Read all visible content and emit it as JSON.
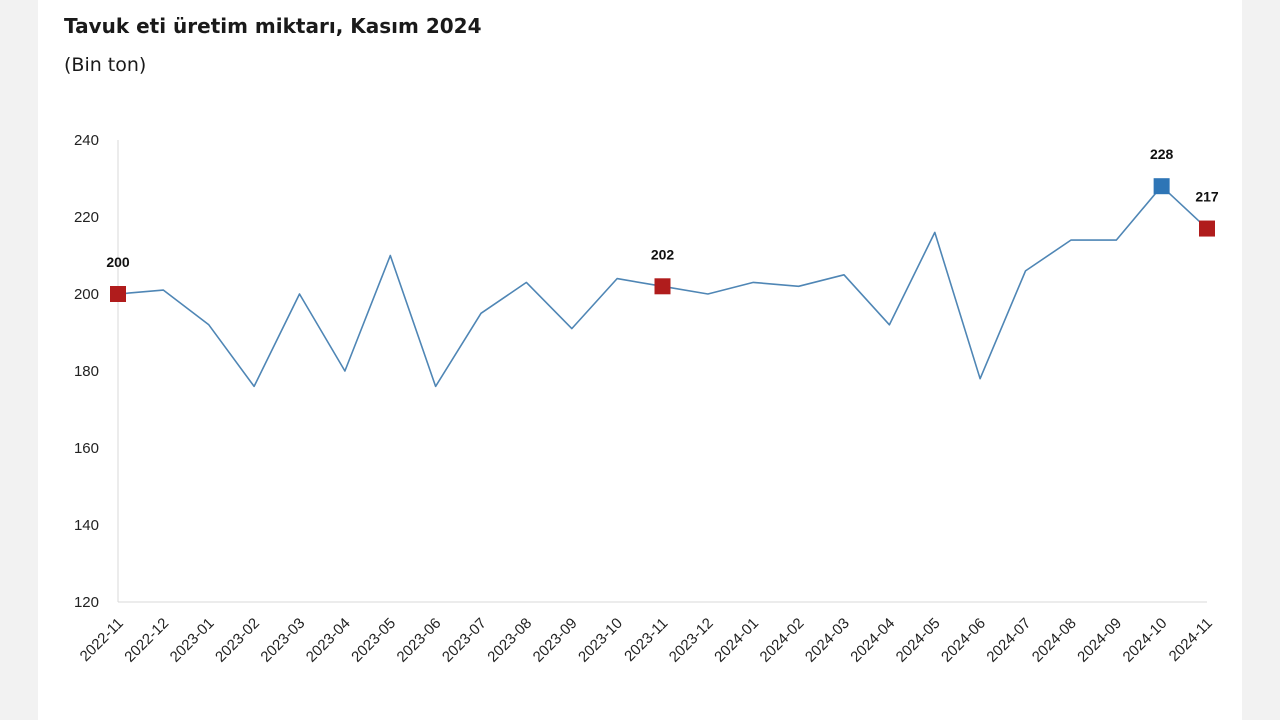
{
  "chart_data": {
    "type": "line",
    "title": "Tavuk eti üretim miktarı, Kasım 2024",
    "subtitle": "(Bin ton)",
    "xlabel": "",
    "ylabel": "",
    "ylim": [
      120,
      240
    ],
    "yticks": [
      120,
      140,
      160,
      180,
      200,
      220,
      240
    ],
    "grid": false,
    "legend": "none",
    "categories": [
      "2022-11",
      "2022-12",
      "2023-01",
      "2023-02",
      "2023-03",
      "2023-04",
      "2023-05",
      "2023-06",
      "2023-07",
      "2023-08",
      "2023-09",
      "2023-10",
      "2023-11",
      "2023-12",
      "2024-01",
      "2024-02",
      "2024-03",
      "2024-04",
      "2024-05",
      "2024-06",
      "2024-07",
      "2024-08",
      "2024-09",
      "2024-10",
      "2024-11"
    ],
    "series": [
      {
        "values": [
          200,
          201,
          192,
          176,
          200,
          180,
          210,
          176,
          195,
          203,
          191,
          204,
          202,
          200,
          203,
          202,
          205,
          192,
          216,
          178,
          206,
          214,
          214,
          228,
          217
        ],
        "color": "#4f86b5"
      }
    ],
    "markers": [
      {
        "index": 0,
        "label": "200",
        "color": "#b01c1c"
      },
      {
        "index": 12,
        "label": "202",
        "color": "#b01c1c"
      },
      {
        "index": 23,
        "label": "228",
        "color": "#2e75b6"
      },
      {
        "index": 24,
        "label": "217",
        "color": "#b01c1c"
      }
    ],
    "axis_color": "#d9d9d9"
  }
}
